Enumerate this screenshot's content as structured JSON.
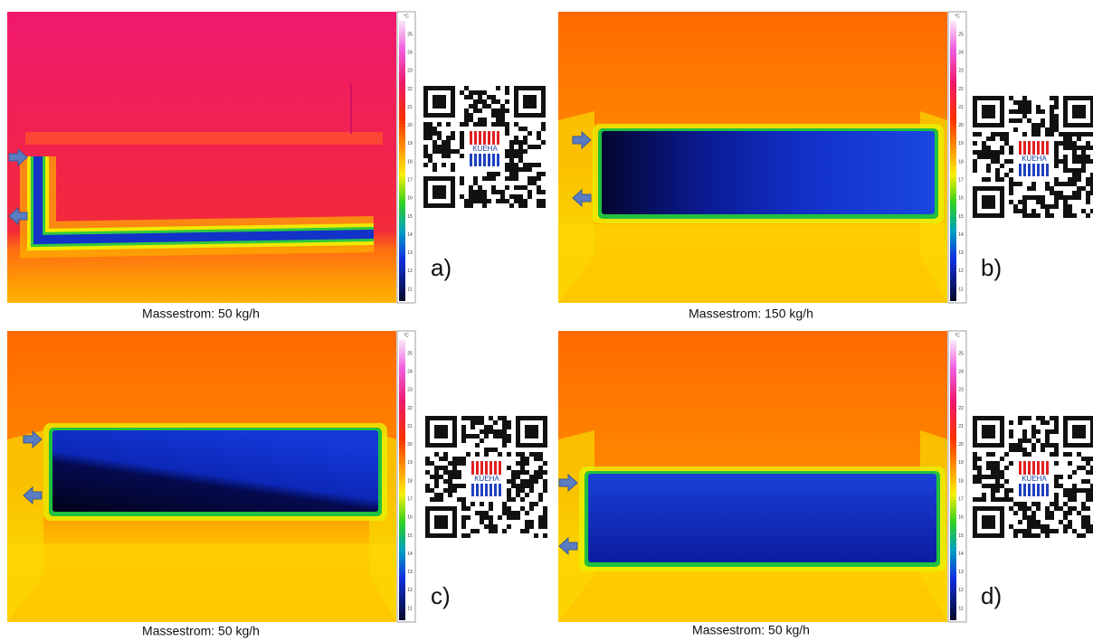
{
  "colorbar": {
    "unit": "°C",
    "ticks": [
      25,
      24,
      23,
      22,
      21,
      20,
      19,
      18,
      17,
      16,
      15,
      14,
      13,
      12,
      11
    ]
  },
  "panels": [
    {
      "label": "a)",
      "caption": "Massestrom: 50 kg/h",
      "logo": "KUEHA"
    },
    {
      "label": "b)",
      "caption": "Massestrom: 150 kg/h",
      "logo": "KUEHA"
    },
    {
      "label": "c)",
      "caption": "Massestrom: 50 kg/h",
      "logo": "KUEHA"
    },
    {
      "label": "d)",
      "caption": "Massestrom: 50 kg/h",
      "logo": "KUEHA"
    }
  ]
}
